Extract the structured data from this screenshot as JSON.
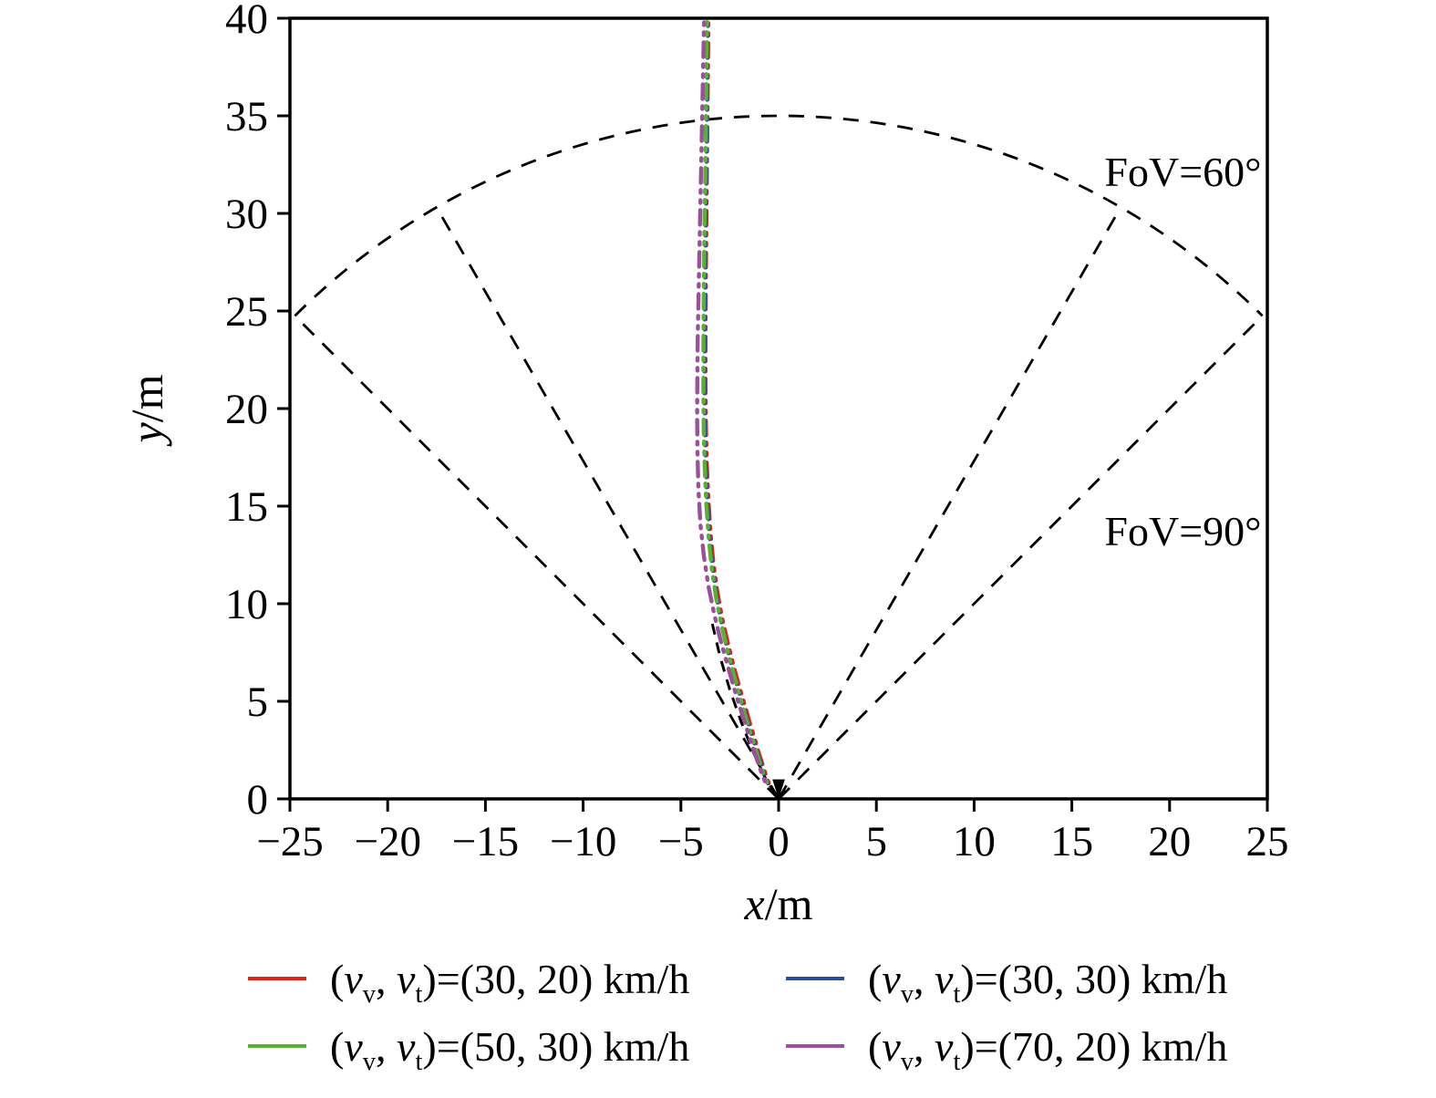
{
  "figure": {
    "background": "#ffffff"
  },
  "chart_data": {
    "type": "scatter",
    "title": "",
    "xlabel_var": "x",
    "xlabel_rest": "/m",
    "ylabel_var": "y",
    "ylabel_rest": "/m",
    "xlim": [
      -25,
      25
    ],
    "ylim": [
      0,
      40
    ],
    "xticks": [
      -25,
      -20,
      -15,
      -10,
      -5,
      0,
      5,
      10,
      15,
      20,
      25
    ],
    "yticks": [
      0,
      5,
      10,
      15,
      20,
      25,
      30,
      35,
      40
    ],
    "grid": false,
    "legend_position": "below",
    "fov": {
      "radius": 35,
      "arc_half_angle_deg": 45,
      "sectors": [
        {
          "label": "FoV=60°",
          "half_angle_deg": 30,
          "label_anchor": [
            24.7,
            31.4
          ]
        },
        {
          "label": "FoV=90°",
          "half_angle_deg": 45,
          "label_anchor": [
            24.7,
            13.0
          ]
        }
      ]
    },
    "series": [
      {
        "name": "vv30-vt20",
        "color": "#e2231a",
        "label": "(v_v, v_t)=(30, 20) km/h",
        "points": [
          [
            -0.5,
            0.8
          ],
          [
            -0.65,
            1.2
          ],
          [
            -0.8,
            1.7
          ],
          [
            -1.0,
            2.3
          ],
          [
            -1.2,
            3.0
          ],
          [
            -1.45,
            3.8
          ],
          [
            -1.7,
            4.7
          ],
          [
            -2.0,
            5.7
          ],
          [
            -2.3,
            6.8
          ],
          [
            -2.6,
            8.0
          ],
          [
            -2.9,
            9.3
          ],
          [
            -3.15,
            10.7
          ],
          [
            -3.35,
            12.2
          ],
          [
            -3.5,
            13.8
          ],
          [
            -3.6,
            15.5
          ],
          [
            -3.68,
            17.3
          ],
          [
            -3.72,
            19.2
          ],
          [
            -3.74,
            21.2
          ],
          [
            -3.74,
            23.2
          ],
          [
            -3.73,
            25.2
          ],
          [
            -3.72,
            27.2
          ],
          [
            -3.7,
            29.2
          ],
          [
            -3.68,
            31.2
          ],
          [
            -3.66,
            33.2
          ],
          [
            -3.64,
            35.2
          ],
          [
            -3.62,
            37.2
          ],
          [
            -3.6,
            39.2
          ],
          [
            -3.6,
            40
          ]
        ]
      },
      {
        "name": "vv30-vt30",
        "color": "#2b4da0",
        "label": "(v_v, v_t)=(30, 30) km/h",
        "points": [
          [
            -0.55,
            0.8
          ],
          [
            -0.72,
            1.25
          ],
          [
            -0.9,
            1.8
          ],
          [
            -1.12,
            2.45
          ],
          [
            -1.35,
            3.2
          ],
          [
            -1.6,
            4.0
          ],
          [
            -1.88,
            4.95
          ],
          [
            -2.18,
            6.0
          ],
          [
            -2.5,
            7.15
          ],
          [
            -2.8,
            8.4
          ],
          [
            -3.08,
            9.75
          ],
          [
            -3.3,
            11.2
          ],
          [
            -3.48,
            12.75
          ],
          [
            -3.6,
            14.4
          ],
          [
            -3.7,
            16.2
          ],
          [
            -3.76,
            18.1
          ],
          [
            -3.8,
            20.1
          ],
          [
            -3.8,
            22.1
          ],
          [
            -3.79,
            24.1
          ],
          [
            -3.77,
            26.1
          ],
          [
            -3.75,
            28.1
          ],
          [
            -3.72,
            30.1
          ],
          [
            -3.7,
            32.1
          ],
          [
            -3.68,
            34.1
          ],
          [
            -3.66,
            36.1
          ],
          [
            -3.64,
            38.1
          ],
          [
            -3.62,
            40
          ]
        ]
      },
      {
        "name": "vv50-vt30",
        "color": "#57b231",
        "label": "(v_v, v_t)=(50, 30) km/h",
        "points": [
          [
            -0.6,
            0.85
          ],
          [
            -0.78,
            1.3
          ],
          [
            -0.98,
            1.9
          ],
          [
            -1.2,
            2.6
          ],
          [
            -1.45,
            3.4
          ],
          [
            -1.72,
            4.3
          ],
          [
            -2.0,
            5.3
          ],
          [
            -2.3,
            6.4
          ],
          [
            -2.62,
            7.6
          ],
          [
            -2.92,
            8.9
          ],
          [
            -3.2,
            10.3
          ],
          [
            -3.42,
            11.8
          ],
          [
            -3.58,
            13.4
          ],
          [
            -3.7,
            15.1
          ],
          [
            -3.78,
            16.9
          ],
          [
            -3.83,
            18.8
          ],
          [
            -3.85,
            20.8
          ],
          [
            -3.85,
            22.8
          ],
          [
            -3.84,
            24.8
          ],
          [
            -3.82,
            26.8
          ],
          [
            -3.8,
            28.8
          ],
          [
            -3.77,
            30.8
          ],
          [
            -3.74,
            32.8
          ],
          [
            -3.72,
            34.8
          ],
          [
            -3.7,
            36.8
          ],
          [
            -3.68,
            38.8
          ],
          [
            -3.66,
            40
          ]
        ]
      },
      {
        "name": "vv70-vt20",
        "color": "#9d4f9e",
        "label": "(v_v, v_t)=(70, 20) km/h",
        "points": [
          [
            -0.7,
            0.9
          ],
          [
            -0.9,
            1.4
          ],
          [
            -1.12,
            2.05
          ],
          [
            -1.38,
            2.8
          ],
          [
            -1.65,
            3.65
          ],
          [
            -1.95,
            4.6
          ],
          [
            -2.27,
            5.65
          ],
          [
            -2.6,
            6.8
          ],
          [
            -2.95,
            8.05
          ],
          [
            -3.28,
            9.4
          ],
          [
            -3.58,
            10.85
          ],
          [
            -3.82,
            12.4
          ],
          [
            -4.0,
            14.05
          ],
          [
            -4.1,
            15.8
          ],
          [
            -4.15,
            17.65
          ],
          [
            -4.17,
            19.6
          ],
          [
            -4.16,
            21.6
          ],
          [
            -4.14,
            23.6
          ],
          [
            -4.1,
            25.6
          ],
          [
            -4.06,
            27.6
          ],
          [
            -4.02,
            29.6
          ],
          [
            -3.98,
            31.6
          ],
          [
            -3.94,
            33.6
          ],
          [
            -3.9,
            35.6
          ],
          [
            -3.86,
            37.6
          ],
          [
            -3.82,
            39.6
          ],
          [
            -3.8,
            40
          ]
        ]
      }
    ],
    "guide_dashed_black": {
      "color": "#000000",
      "points": [
        [
          -0.15,
          0.2
        ],
        [
          -0.7,
          1.1
        ],
        [
          -1.3,
          2.4
        ],
        [
          -1.9,
          3.9
        ],
        [
          -2.5,
          5.6
        ],
        [
          -3.0,
          7.3
        ],
        [
          -3.4,
          9.0
        ]
      ]
    }
  },
  "legend": {
    "items": [
      {
        "color": "#e2231a",
        "label": "(v_v, v_t)=(30, 20) km/h"
      },
      {
        "color": "#2b4da0",
        "label": "(v_v, v_t)=(30, 30) km/h"
      },
      {
        "color": "#57b231",
        "label": "(v_v, v_t)=(50, 30) km/h"
      },
      {
        "color": "#9d4f9e",
        "label": "(v_v, v_t)=(70, 20) km/h"
      }
    ]
  }
}
